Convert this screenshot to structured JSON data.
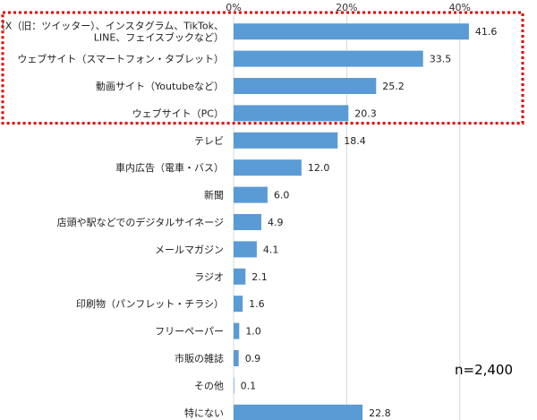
{
  "chart_data": {
    "type": "bar",
    "orientation": "horizontal",
    "title": "",
    "xlabel": "",
    "ylabel": "",
    "categories": [
      [
        "SNS（X（旧：ツイッター）、インスタグラム、TikTok、",
        "LINE、フェイスブックなど）"
      ],
      [
        "ウェブサイト（スマートフォン・タブレット）"
      ],
      [
        "動画サイト（Youtubeなど）"
      ],
      [
        "ウェブサイト（PC）"
      ],
      [
        "テレビ"
      ],
      [
        "車内広告（電車・バス）"
      ],
      [
        "新聞"
      ],
      [
        "店頭や駅などでのデジタルサイネージ"
      ],
      [
        "メールマガジン"
      ],
      [
        "ラジオ"
      ],
      [
        "印刷物（パンフレット・チラシ）"
      ],
      [
        "フリーペーパー"
      ],
      [
        "市販の雑誌"
      ],
      [
        "その他"
      ],
      [
        "特にない"
      ]
    ],
    "values": [
      41.6,
      33.5,
      25.2,
      20.3,
      18.4,
      12.0,
      6.0,
      4.9,
      4.1,
      2.1,
      1.6,
      1.0,
      0.9,
      0.1,
      22.8
    ],
    "value_labels": [
      "41.6",
      "33.5",
      "25.2",
      "20.3",
      "18.4",
      "12.0",
      "6.0",
      "4.9",
      "4.1",
      "2.1",
      "1.6",
      "1.0",
      "0.9",
      "0.1",
      "22.8"
    ],
    "xticks": [
      0,
      20,
      40
    ],
    "xtick_labels": [
      "0%",
      "20%",
      "40%"
    ],
    "xlim": [
      0,
      50
    ],
    "grid": true,
    "bar_color": "#5b9bd5",
    "grid_color": "#d9d9d9",
    "highlight": {
      "categories_index_range": [
        0,
        3
      ],
      "color": "#e00000",
      "style": "dotted-box"
    },
    "annotation": "n=2,400"
  }
}
